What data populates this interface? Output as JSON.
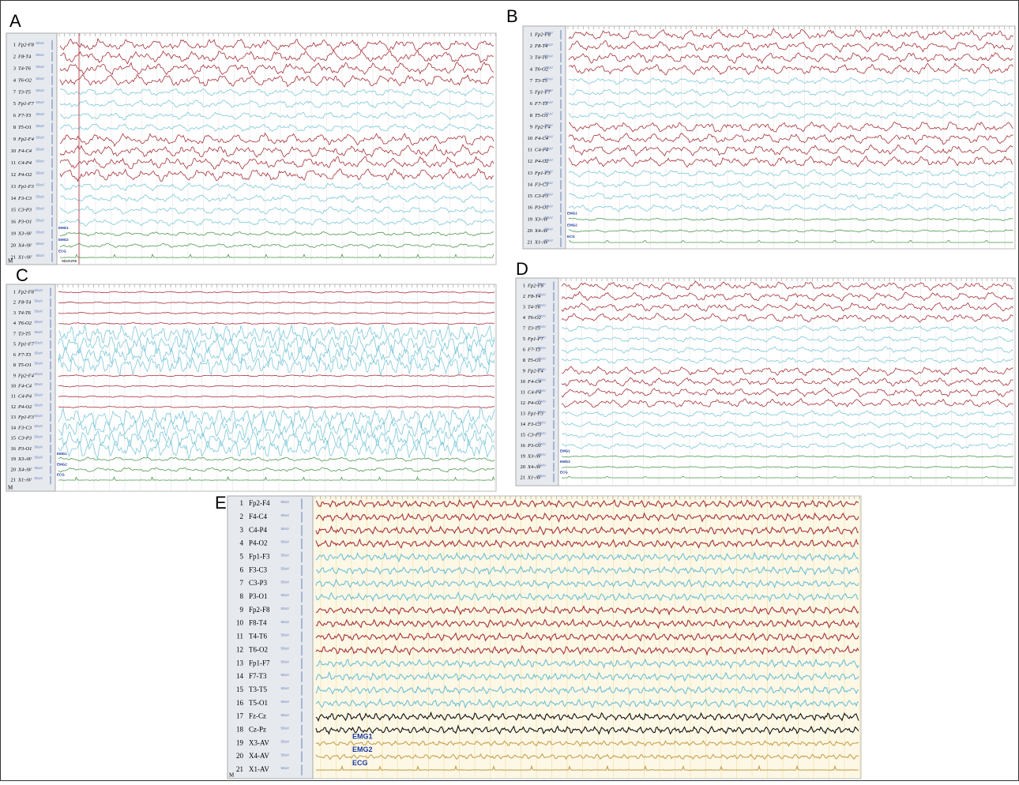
{
  "panels": [
    {
      "letter": "A",
      "scale_label": "50uV",
      "channels": [
        {
          "number": 1,
          "label": "Fp2-F8",
          "color": "#a8303a"
        },
        {
          "number": 2,
          "label": "F8-T4",
          "color": "#a8303a"
        },
        {
          "number": 3,
          "label": "T4-T6",
          "color": "#a8303a"
        },
        {
          "number": 4,
          "label": "T6-O2",
          "color": "#a8303a"
        },
        {
          "number": 7,
          "label": "T3-T5",
          "color": "#7cc8d8"
        },
        {
          "number": 5,
          "label": "Fp1-F7",
          "color": "#7cc8d8"
        },
        {
          "number": 6,
          "label": "F7-T3",
          "color": "#7cc8d8"
        },
        {
          "number": 8,
          "label": "T5-O1",
          "color": "#7cc8d8"
        },
        {
          "number": 9,
          "label": "Fp2-F4",
          "color": "#a8303a"
        },
        {
          "number": 10,
          "label": "F4-C4",
          "color": "#a8303a"
        },
        {
          "number": 11,
          "label": "C4-P4",
          "color": "#a8303a"
        },
        {
          "number": 12,
          "label": "P4-O2",
          "color": "#a8303a"
        },
        {
          "number": 13,
          "label": "Fp1-F3",
          "color": "#7cc8d8"
        },
        {
          "number": 14,
          "label": "F3-C3",
          "color": "#7cc8d8"
        },
        {
          "number": 15,
          "label": "C3-P3",
          "color": "#7cc8d8"
        },
        {
          "number": 16,
          "label": "P3-O1",
          "color": "#7cc8d8"
        },
        {
          "number": 19,
          "label": "X3-AV",
          "color": "#4e9a4e"
        },
        {
          "number": 20,
          "label": "X4-AV",
          "color": "#4e9a4e"
        },
        {
          "number": 21,
          "label": "X1-AV",
          "color": "#4e9a4e"
        }
      ],
      "annotations": {
        "emg1": "EMG1",
        "emg2": "EMG2",
        "ecg": "ECG",
        "seizure": "SEIZURE",
        "montage": "M"
      }
    },
    {
      "letter": "B",
      "scale_label": "50uV",
      "channels": [
        {
          "number": 1,
          "label": "Fp2-F8",
          "color": "#a8303a"
        },
        {
          "number": 2,
          "label": "F8-T4",
          "color": "#a8303a"
        },
        {
          "number": 3,
          "label": "T4-T6",
          "color": "#a8303a"
        },
        {
          "number": 4,
          "label": "T6-O2",
          "color": "#a8303a"
        },
        {
          "number": 7,
          "label": "T3-T5",
          "color": "#7cc8d8"
        },
        {
          "number": 5,
          "label": "Fp1-F7",
          "color": "#7cc8d8"
        },
        {
          "number": 6,
          "label": "F7-T3",
          "color": "#7cc8d8"
        },
        {
          "number": 8,
          "label": "T5-O1",
          "color": "#7cc8d8"
        },
        {
          "number": 9,
          "label": "Fp2-F4",
          "color": "#a8303a"
        },
        {
          "number": 10,
          "label": "F4-C4",
          "color": "#a8303a"
        },
        {
          "number": 11,
          "label": "C4-P4",
          "color": "#a8303a"
        },
        {
          "number": 12,
          "label": "P4-O2",
          "color": "#a8303a"
        },
        {
          "number": 13,
          "label": "Fp1-F3",
          "color": "#7cc8d8"
        },
        {
          "number": 14,
          "label": "F3-C3",
          "color": "#7cc8d8"
        },
        {
          "number": 15,
          "label": "C3-P3",
          "color": "#7cc8d8"
        },
        {
          "number": 16,
          "label": "P3-O1",
          "color": "#7cc8d8"
        },
        {
          "number": 19,
          "label": "X3-AV",
          "color": "#4e9a4e"
        },
        {
          "number": 20,
          "label": "X4-AV",
          "color": "#4e9a4e"
        },
        {
          "number": 21,
          "label": "X1-AV",
          "color": "#4e9a4e"
        }
      ],
      "annotations": {
        "emg1": "EMG1",
        "emg2": "EMG2",
        "ecg": "ECG"
      }
    },
    {
      "letter": "C",
      "scale_label": "50uV",
      "channels": [
        {
          "number": 1,
          "label": "Fp2-F8",
          "color": "#a8303a"
        },
        {
          "number": 2,
          "label": "F8-T4",
          "color": "#a8303a"
        },
        {
          "number": 3,
          "label": "T4-T6",
          "color": "#a8303a"
        },
        {
          "number": 4,
          "label": "T6-O2",
          "color": "#a8303a"
        },
        {
          "number": 7,
          "label": "T3-T5",
          "color": "#7cc8d8"
        },
        {
          "number": 5,
          "label": "Fp1-F7",
          "color": "#7cc8d8"
        },
        {
          "number": 6,
          "label": "F7-T3",
          "color": "#7cc8d8"
        },
        {
          "number": 8,
          "label": "T5-O1",
          "color": "#7cc8d8"
        },
        {
          "number": 9,
          "label": "Fp2-F4",
          "color": "#a8303a"
        },
        {
          "number": 10,
          "label": "F4-C4",
          "color": "#a8303a"
        },
        {
          "number": 11,
          "label": "C4-P4",
          "color": "#a8303a"
        },
        {
          "number": 12,
          "label": "P4-O2",
          "color": "#a8303a"
        },
        {
          "number": 13,
          "label": "Fp1-F3",
          "color": "#7cc8d8"
        },
        {
          "number": 14,
          "label": "F3-C3",
          "color": "#7cc8d8"
        },
        {
          "number": 15,
          "label": "C3-P3",
          "color": "#7cc8d8"
        },
        {
          "number": 16,
          "label": "P3-O1",
          "color": "#7cc8d8"
        },
        {
          "number": 19,
          "label": "X3-AV",
          "color": "#4e9a4e"
        },
        {
          "number": 20,
          "label": "X4-AV",
          "color": "#4e9a4e"
        },
        {
          "number": 21,
          "label": "X1-AV",
          "color": "#4e9a4e"
        }
      ],
      "annotations": {
        "emg1": "EMG1",
        "emg2": "EMG2",
        "ecg": "ECG",
        "montage": "M"
      }
    },
    {
      "letter": "D",
      "scale_label": "50uV",
      "channels": [
        {
          "number": 1,
          "label": "Fp2-F8",
          "color": "#a8303a"
        },
        {
          "number": 2,
          "label": "F8-T4",
          "color": "#a8303a"
        },
        {
          "number": 3,
          "label": "T4-T6",
          "color": "#a8303a"
        },
        {
          "number": 4,
          "label": "T6-O2",
          "color": "#a8303a"
        },
        {
          "number": 7,
          "label": "T3-T5",
          "color": "#7cc8d8"
        },
        {
          "number": 5,
          "label": "Fp1-F7",
          "color": "#7cc8d8"
        },
        {
          "number": 6,
          "label": "F7-T3",
          "color": "#7cc8d8"
        },
        {
          "number": 8,
          "label": "T5-O1",
          "color": "#7cc8d8"
        },
        {
          "number": 9,
          "label": "Fp2-F4",
          "color": "#a8303a"
        },
        {
          "number": 10,
          "label": "F4-C4",
          "color": "#a8303a"
        },
        {
          "number": 11,
          "label": "C4-P4",
          "color": "#a8303a"
        },
        {
          "number": 12,
          "label": "P4-O2",
          "color": "#a8303a"
        },
        {
          "number": 13,
          "label": "Fp1-F3",
          "color": "#7cc8d8"
        },
        {
          "number": 14,
          "label": "F3-C3",
          "color": "#7cc8d8"
        },
        {
          "number": 15,
          "label": "C3-P3",
          "color": "#7cc8d8"
        },
        {
          "number": 16,
          "label": "P3-O1",
          "color": "#7cc8d8"
        },
        {
          "number": 19,
          "label": "X3-AV",
          "color": "#4e9a4e"
        },
        {
          "number": 20,
          "label": "X4-AV",
          "color": "#4e9a4e"
        },
        {
          "number": 21,
          "label": "X1-AV",
          "color": "#4e9a4e"
        }
      ],
      "annotations": {
        "emg1": "EMG1",
        "emg2": "EMG2",
        "ecg": "ECG"
      }
    },
    {
      "letter": "E",
      "scale_label": "50uV",
      "channels": [
        {
          "number": 1,
          "label": "Fp2-F4",
          "color": "#a8303a"
        },
        {
          "number": 2,
          "label": "F4-C4",
          "color": "#a8303a"
        },
        {
          "number": 3,
          "label": "C4-P4",
          "color": "#a8303a"
        },
        {
          "number": 4,
          "label": "P4-O2",
          "color": "#a8303a"
        },
        {
          "number": 5,
          "label": "Fp1-F3",
          "color": "#6cc0d4"
        },
        {
          "number": 6,
          "label": "F3-C3",
          "color": "#6cc0d4"
        },
        {
          "number": 7,
          "label": "C3-P3",
          "color": "#6cc0d4"
        },
        {
          "number": 8,
          "label": "P3-O1",
          "color": "#6cc0d4"
        },
        {
          "number": 9,
          "label": "Fp2-F8",
          "color": "#a8303a"
        },
        {
          "number": 10,
          "label": "F8-T4",
          "color": "#a8303a"
        },
        {
          "number": 11,
          "label": "T4-T6",
          "color": "#a8303a"
        },
        {
          "number": 12,
          "label": "T6-O2",
          "color": "#a8303a"
        },
        {
          "number": 13,
          "label": "Fp1-F7",
          "color": "#6cc0d4"
        },
        {
          "number": 14,
          "label": "F7-T3",
          "color": "#6cc0d4"
        },
        {
          "number": 15,
          "label": "T3-T5",
          "color": "#6cc0d4"
        },
        {
          "number": 16,
          "label": "T5-O1",
          "color": "#6cc0d4"
        },
        {
          "number": 17,
          "label": "Fz-Cz",
          "color": "#111111"
        },
        {
          "number": 18,
          "label": "Cz-Pz",
          "color": "#111111"
        },
        {
          "number": 19,
          "label": "X3-AV",
          "color": "#c8a050"
        },
        {
          "number": 20,
          "label": "X4-AV",
          "color": "#c8a050"
        },
        {
          "number": 21,
          "label": "X1-AV",
          "color": "#c8a050"
        }
      ],
      "annotations": {
        "emg1": "EMG1",
        "emg2": "EMG2",
        "ecg": "ECG",
        "montage": "M"
      }
    }
  ]
}
